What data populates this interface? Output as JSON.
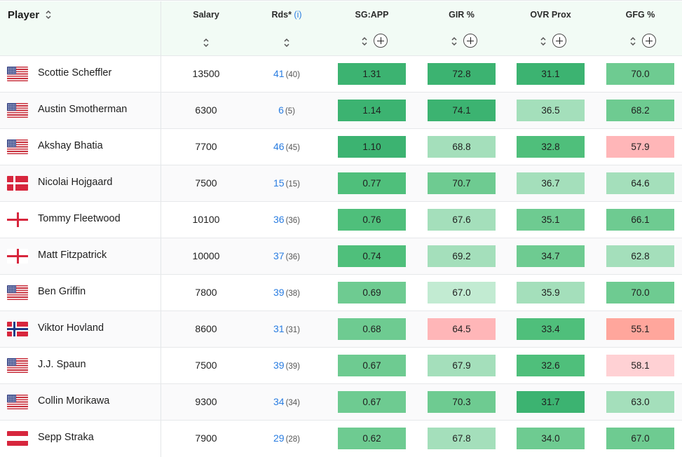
{
  "header": {
    "player": "Player",
    "salary": "Salary",
    "rds": "Rds*",
    "rds_info": "(i)",
    "sgapp": "SG:APP",
    "gir": "GIR %",
    "ovrprox": "OVR Prox",
    "gfg": "GFG %"
  },
  "colors": {
    "dark_green": "#3cb371",
    "green": "#4fbf7b",
    "mid_green": "#6ecb91",
    "light_green": "#a4dfbb",
    "pale_green": "#c2ebd2",
    "pale_red": "#ffd1d4",
    "light_red": "#ffb6b8",
    "red": "#ffa69c",
    "link_blue": "#2a7de1"
  },
  "rows": [
    {
      "name": "Scottie Scheffler",
      "flag": "us-flag-icon",
      "salary": "13500",
      "rds": "41",
      "rds_sub": "(40)",
      "sgapp": "1.31",
      "gir": "72.8",
      "prox": "31.1",
      "gfg": "70.0"
    },
    {
      "name": "Austin Smotherman",
      "flag": "us-flag-icon",
      "salary": "6300",
      "rds": "6",
      "rds_sub": "(5)",
      "sgapp": "1.14",
      "gir": "74.1",
      "prox": "36.5",
      "gfg": "68.2"
    },
    {
      "name": "Akshay Bhatia",
      "flag": "us-flag-icon",
      "salary": "7700",
      "rds": "46",
      "rds_sub": "(45)",
      "sgapp": "1.10",
      "gir": "68.8",
      "prox": "32.8",
      "gfg": "57.9"
    },
    {
      "name": "Nicolai Hojgaard",
      "flag": "denmark-flag-icon",
      "salary": "7500",
      "rds": "15",
      "rds_sub": "(15)",
      "sgapp": "0.77",
      "gir": "70.7",
      "prox": "36.7",
      "gfg": "64.6"
    },
    {
      "name": "Tommy Fleetwood",
      "flag": "england-flag-icon",
      "salary": "10100",
      "rds": "36",
      "rds_sub": "(36)",
      "sgapp": "0.76",
      "gir": "67.6",
      "prox": "35.1",
      "gfg": "66.1"
    },
    {
      "name": "Matt Fitzpatrick",
      "flag": "england-flag-icon",
      "salary": "10000",
      "rds": "37",
      "rds_sub": "(36)",
      "sgapp": "0.74",
      "gir": "69.2",
      "prox": "34.7",
      "gfg": "62.8"
    },
    {
      "name": "Ben Griffin",
      "flag": "us-flag-icon",
      "salary": "7800",
      "rds": "39",
      "rds_sub": "(38)",
      "sgapp": "0.69",
      "gir": "67.0",
      "prox": "35.9",
      "gfg": "70.0"
    },
    {
      "name": "Viktor Hovland",
      "flag": "norway-flag-icon",
      "salary": "8600",
      "rds": "31",
      "rds_sub": "(31)",
      "sgapp": "0.68",
      "gir": "64.5",
      "prox": "33.4",
      "gfg": "55.1"
    },
    {
      "name": "J.J. Spaun",
      "flag": "us-flag-icon",
      "salary": "7500",
      "rds": "39",
      "rds_sub": "(39)",
      "sgapp": "0.67",
      "gir": "67.9",
      "prox": "32.6",
      "gfg": "58.1"
    },
    {
      "name": "Collin Morikawa",
      "flag": "us-flag-icon",
      "salary": "9300",
      "rds": "34",
      "rds_sub": "(34)",
      "sgapp": "0.67",
      "gir": "70.3",
      "prox": "31.7",
      "gfg": "63.0"
    },
    {
      "name": "Sepp Straka",
      "flag": "austria-flag-icon",
      "salary": "7900",
      "rds": "29",
      "rds_sub": "(28)",
      "sgapp": "0.62",
      "gir": "67.8",
      "prox": "34.0",
      "gfg": "67.0"
    }
  ]
}
